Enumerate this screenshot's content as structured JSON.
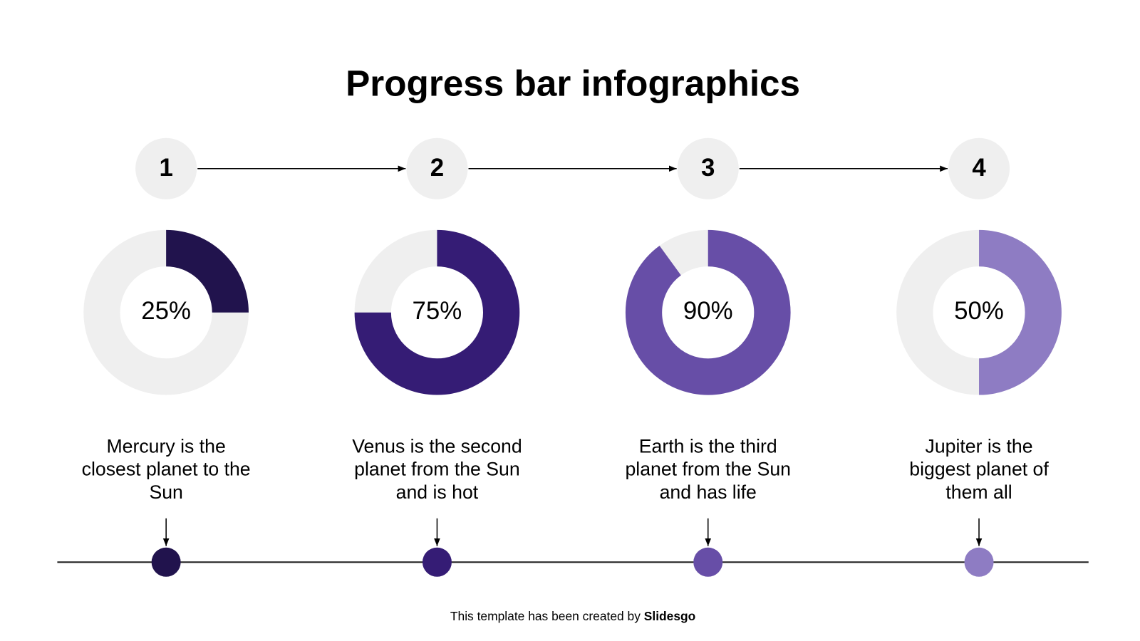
{
  "title": "Progress bar infographics",
  "items": [
    {
      "step": "1",
      "value": 25,
      "value_label": "25%",
      "color": "#21134d",
      "description": [
        "Mercury is the",
        "closest planet to the",
        "Sun"
      ]
    },
    {
      "step": "2",
      "value": 75,
      "value_label": "75%",
      "color": "#351c75",
      "description": [
        "Venus is the second",
        "planet from the Sun",
        "and is hot"
      ]
    },
    {
      "step": "3",
      "value": 90,
      "value_label": "90%",
      "color": "#674ea7",
      "description": [
        "Earth is the third",
        "planet from the Sun",
        "and has life"
      ]
    },
    {
      "step": "4",
      "value": 50,
      "value_label": "50%",
      "color": "#8e7cc3",
      "description": [
        "Jupiter is the",
        "biggest planet of",
        "them all"
      ]
    }
  ],
  "footer": {
    "text": "This template has been created by ",
    "brand": "Slidesgo"
  }
}
